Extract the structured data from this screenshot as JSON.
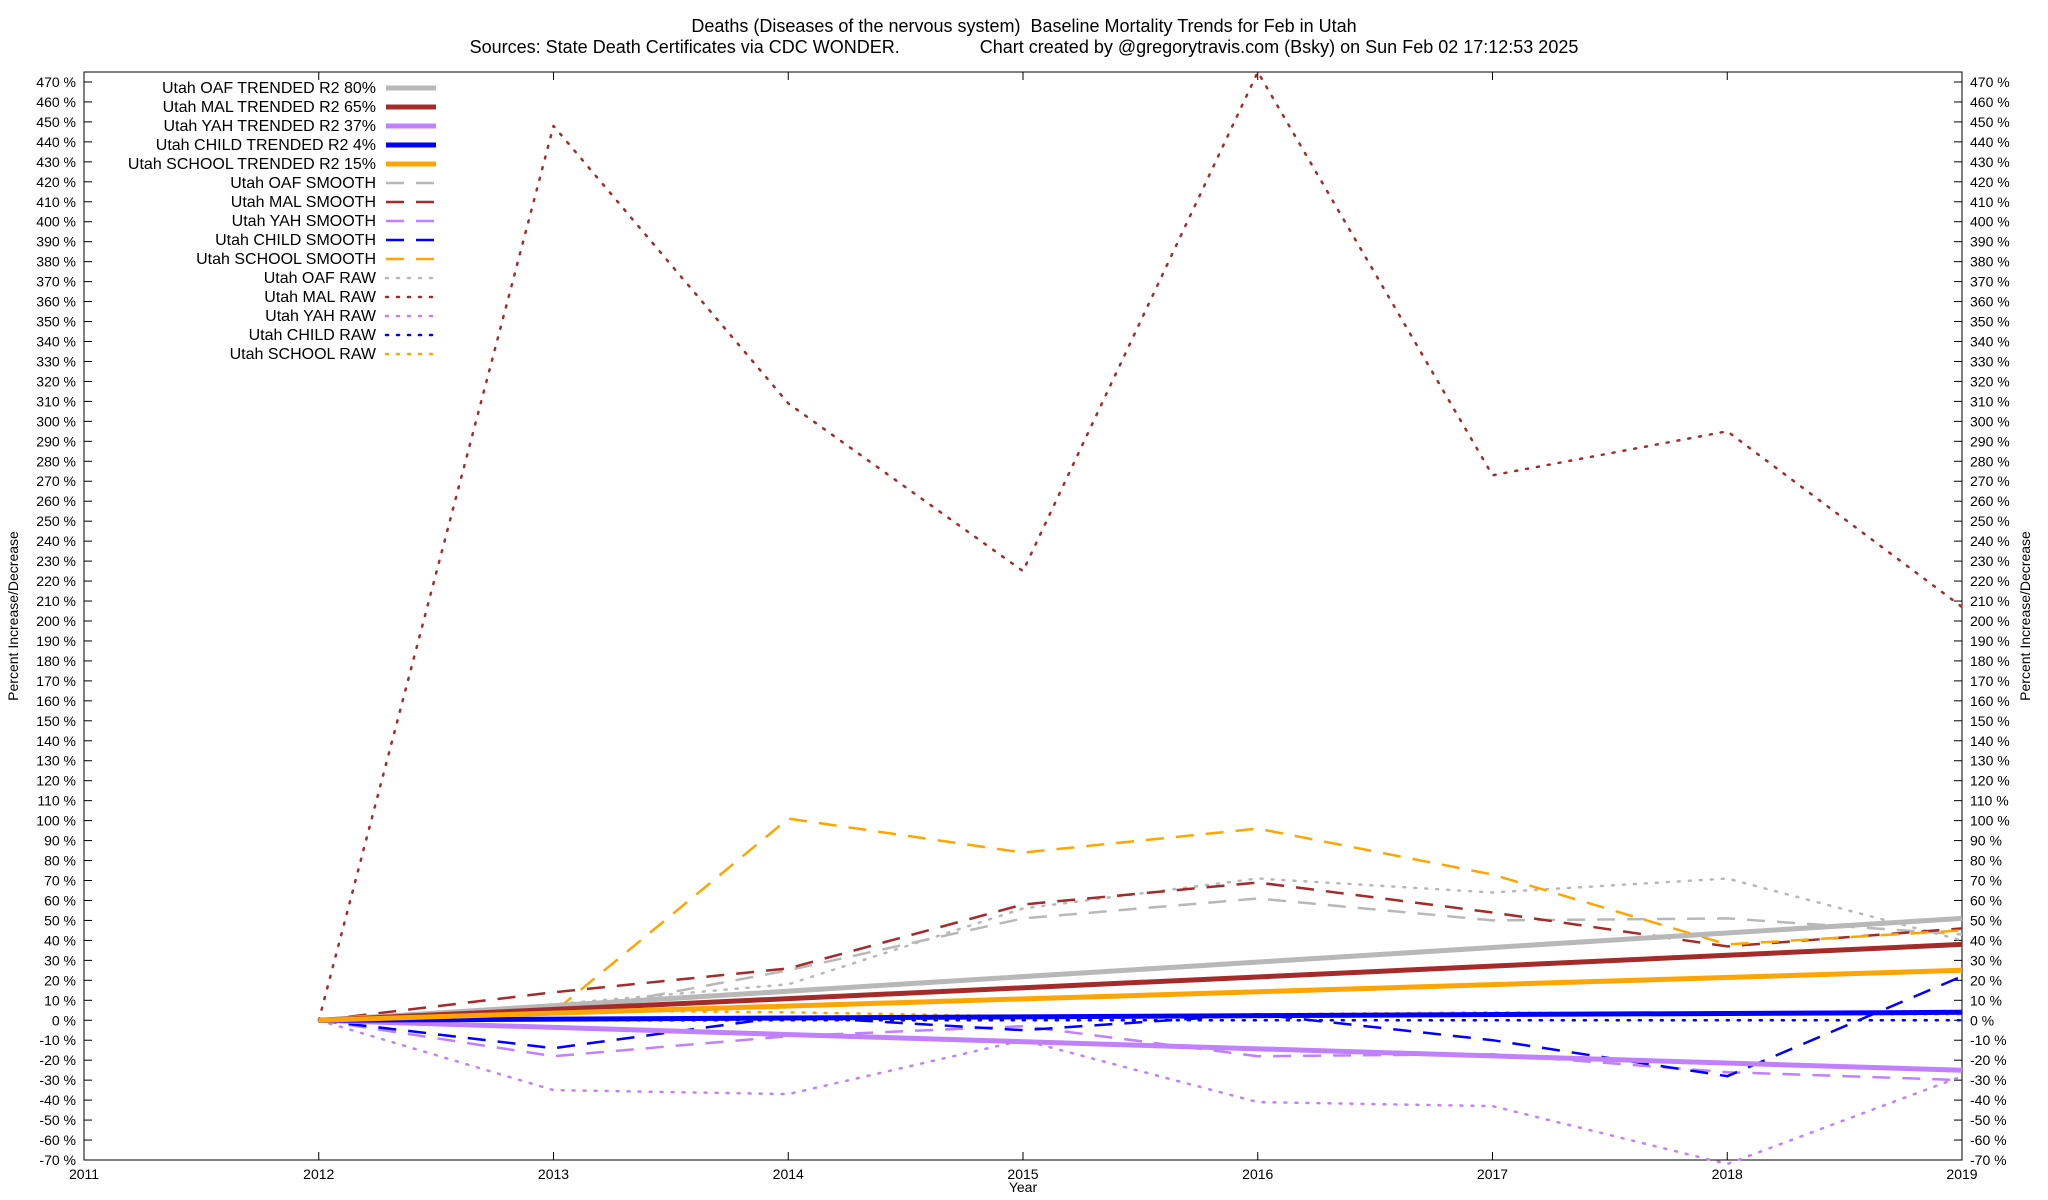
{
  "header": {
    "title_line1": "Deaths (Diseases of the nervous system)  Baseline Mortality Trends for Feb in Utah",
    "title_line2": "Sources: State Death Certificates via CDC WONDER.                Chart created by @gregorytravis.com (Bsky) on Sun Feb 02 17:12:53 2025"
  },
  "chart_data": {
    "type": "line",
    "xlabel": "Year",
    "ylabel": "Percent Increase/Decrease",
    "y2label": "Percent Increase/Decrease",
    "xlim": [
      2011,
      2019
    ],
    "ylim": [
      -70,
      475
    ],
    "x_ticks": [
      2011,
      2012,
      2013,
      2014,
      2015,
      2016,
      2017,
      2018,
      2019
    ],
    "y_tick_step": 10,
    "y_tick_suffix": " %",
    "grid": false,
    "legend_position": "top-left",
    "series": [
      {
        "name": "Utah OAF TRENDED R2  80%",
        "style": "trend",
        "color": "#b8b8b8",
        "x": [
          2012,
          2019
        ],
        "y": [
          0,
          51
        ]
      },
      {
        "name": "Utah MAL TRENDED R2  65%",
        "style": "trend",
        "color": "#a52a2a",
        "x": [
          2012,
          2019
        ],
        "y": [
          0,
          38
        ]
      },
      {
        "name": "Utah YAH TRENDED R2  37%",
        "style": "trend",
        "color": "#c080ff",
        "x": [
          2012,
          2019
        ],
        "y": [
          0,
          -25
        ]
      },
      {
        "name": "Utah CHILD TRENDED R2   4%",
        "style": "trend",
        "color": "#0000ff",
        "x": [
          2012,
          2019
        ],
        "y": [
          0,
          4
        ]
      },
      {
        "name": "Utah SCHOOL TRENDED R2  15%",
        "style": "trend",
        "color": "#ffa500",
        "x": [
          2012,
          2019
        ],
        "y": [
          0,
          25
        ]
      },
      {
        "name": "Utah OAF SMOOTH",
        "style": "smooth",
        "color": "#b8b8b8",
        "x": [
          2012,
          2013,
          2014,
          2015,
          2016,
          2017,
          2018,
          2019
        ],
        "y": [
          0,
          3,
          25,
          51,
          61,
          50,
          51,
          43
        ]
      },
      {
        "name": "Utah MAL SMOOTH",
        "style": "smooth",
        "color": "#a52a2a",
        "x": [
          2012,
          2013,
          2014,
          2015,
          2016,
          2017,
          2018,
          2019
        ],
        "y": [
          0,
          14,
          26,
          58,
          69,
          54,
          37,
          46
        ]
      },
      {
        "name": "Utah YAH SMOOTH",
        "style": "smooth",
        "color": "#c080ff",
        "x": [
          2012,
          2013,
          2014,
          2015,
          2016,
          2017,
          2018,
          2019
        ],
        "y": [
          0,
          -18,
          -8,
          -3,
          -18,
          -17,
          -26,
          -30
        ]
      },
      {
        "name": "Utah CHILD SMOOTH",
        "style": "smooth",
        "color": "#0000ff",
        "x": [
          2012,
          2013,
          2014,
          2015,
          2016,
          2017,
          2018,
          2019
        ],
        "y": [
          0,
          -14,
          2,
          -5,
          3,
          -10,
          -28,
          22
        ]
      },
      {
        "name": "Utah SCHOOL SMOOTH",
        "style": "smooth",
        "color": "#ffa500",
        "x": [
          2012,
          2013,
          2014,
          2015,
          2016,
          2017,
          2018,
          2019
        ],
        "y": [
          0,
          4,
          101,
          84,
          96,
          73,
          38,
          45
        ]
      },
      {
        "name": "Utah OAF RAW",
        "style": "raw",
        "color": "#b8b8b8",
        "x": [
          2012,
          2013,
          2014,
          2015,
          2016,
          2017,
          2018,
          2019
        ],
        "y": [
          0,
          8,
          18,
          56,
          71,
          64,
          71,
          40
        ]
      },
      {
        "name": "Utah MAL RAW",
        "style": "raw",
        "color": "#a52a2a",
        "x": [
          2012,
          2013,
          2014,
          2015,
          2016,
          2017,
          2018,
          2019
        ],
        "y": [
          0,
          448,
          309,
          225,
          475,
          273,
          295,
          207
        ]
      },
      {
        "name": "Utah YAH RAW",
        "style": "raw",
        "color": "#c080ff",
        "x": [
          2012,
          2013,
          2014,
          2015,
          2016,
          2017,
          2018,
          2019
        ],
        "y": [
          0,
          -35,
          -37,
          -10,
          -41,
          -43,
          -72,
          -28
        ]
      },
      {
        "name": "Utah CHILD RAW",
        "style": "raw",
        "color": "#0000ff",
        "x": [
          2012,
          2013,
          2014,
          2015,
          2016,
          2017,
          2018,
          2019
        ],
        "y": [
          0,
          0,
          0,
          0,
          0,
          0,
          0,
          0
        ]
      },
      {
        "name": "Utah SCHOOL RAW",
        "style": "raw",
        "color": "#ffa500",
        "x": [
          2012,
          2013,
          2014,
          2015,
          2016,
          2017,
          2018,
          2019
        ],
        "y": [
          0,
          5,
          4,
          2,
          3,
          4,
          3,
          3
        ]
      }
    ]
  }
}
